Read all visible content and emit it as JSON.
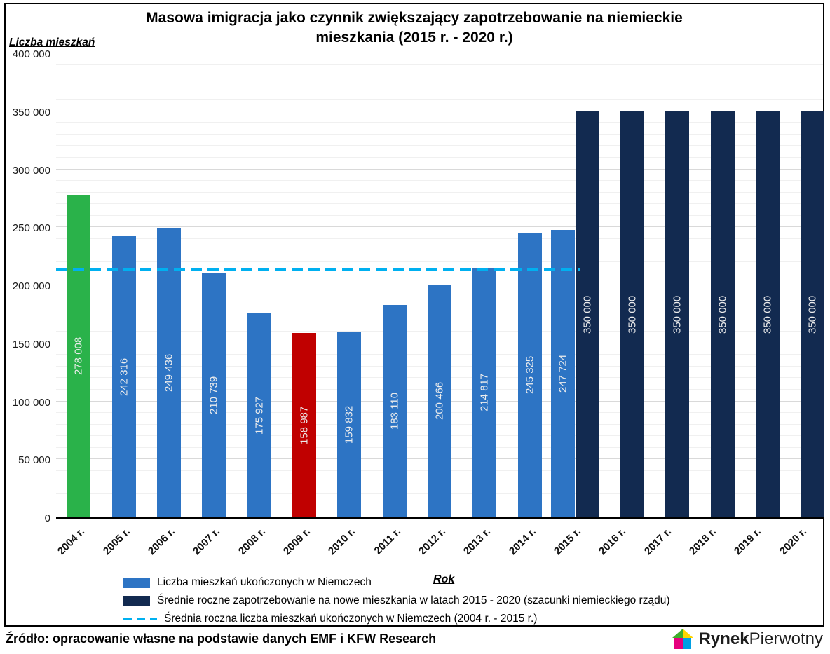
{
  "title": {
    "line1": "Masowa imigracja jako czynnik zwiększający zapotrzebowanie na niemieckie",
    "line2": "mieszkania (2015 r. - 2020 r.)"
  },
  "source": "Źródło: opracowanie własne na podstawie danych EMF i KFW Research",
  "logo": {
    "part1": "Rynek",
    "part2": "Pierwotny"
  },
  "legend": [
    {
      "type": "swatch",
      "color": "#2d74c4",
      "label": "Liczba mieszkań ukończonych w Niemczech"
    },
    {
      "type": "swatch",
      "color": "#122a50",
      "label": "Średnie roczne zapotrzebowanie na nowe mieszkania w latach 2015 - 2020 (szacunki niemieckiego rządu)"
    },
    {
      "type": "dash",
      "color": "#00b0f0",
      "label": "Średnia roczna liczba mieszkań ukończonych w Niemczech (2004 r. - 2015 r.)"
    }
  ],
  "chart_data": {
    "type": "bar",
    "title": "Masowa imigracja jako czynnik zwiększający zapotrzebowanie na niemieckie mieszkania (2015 r. - 2020 r.)",
    "xlabel": "Rok",
    "ylabel": "Liczba mieszkań",
    "ylim": [
      0,
      400000
    ],
    "y_tick_step": 50000,
    "grid_minor_step": 10000,
    "categories": [
      "2004 r.",
      "2005 r.",
      "2006 r.",
      "2007 r.",
      "2008 r.",
      "2009 r.",
      "2010 r.",
      "2011 r.",
      "2012 r.",
      "2013 r.",
      "2014 r.",
      "2015 r.",
      "2016 r.",
      "2017 r.",
      "2018 r.",
      "2019 r.",
      "2020 r."
    ],
    "series": [
      {
        "name": "Liczba mieszkań ukończonych w Niemczech",
        "color": "#2d74c4",
        "bar_colors": {
          "0": "#2ab24a",
          "5": "#c00000"
        },
        "values": [
          278008,
          242316,
          249436,
          210739,
          175927,
          158987,
          159832,
          183110,
          200466,
          214817,
          245325,
          247724,
          null,
          null,
          null,
          null,
          null
        ]
      },
      {
        "name": "Średnie roczne zapotrzebowanie na nowe mieszkania w latach 2015 - 2020 (szacunki niemieckiego rządu)",
        "color": "#122a50",
        "values": [
          null,
          null,
          null,
          null,
          null,
          null,
          null,
          null,
          null,
          null,
          null,
          350000,
          350000,
          350000,
          350000,
          350000,
          350000
        ]
      }
    ],
    "average_line": {
      "value": 213891,
      "color": "#00b0f0",
      "label": "Średnia roczna liczba mieszkań ukończonych w Niemczech (2004 r. - 2015 r.)"
    },
    "legend_position": "bottom-left",
    "grid": "horizontal"
  }
}
